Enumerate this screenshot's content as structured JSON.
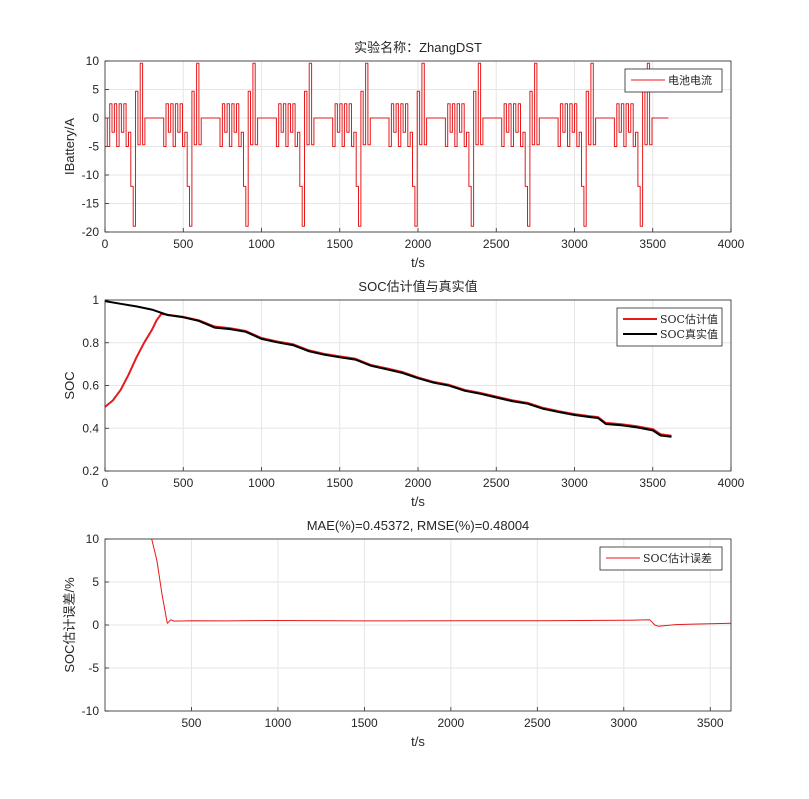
{
  "chart_data": [
    {
      "type": "line",
      "title": "实验名称：ZhangDST",
      "xlabel": "t/s",
      "ylabel": "IBattery/A",
      "xlim": [
        0,
        4000
      ],
      "ylim": [
        -20,
        10
      ],
      "xticks": [
        0,
        500,
        1000,
        1500,
        2000,
        2500,
        3000,
        3500,
        4000
      ],
      "yticks": [
        10,
        5,
        0,
        -5,
        -10,
        -15,
        -20
      ],
      "grid": true,
      "legend": {
        "placement": "top-right",
        "entries": [
          "电池电流"
        ]
      },
      "series": [
        {
          "name": "电池电流",
          "color": "#e41a1c",
          "cycle_period_s": 360,
          "cycles": 10,
          "end_s": 3620,
          "cycle_profile": {
            "t": [
              0,
              15,
              15,
              30,
              30,
              45,
              45,
              60,
              60,
              75,
              75,
              90,
              90,
              105,
              105,
              120,
              120,
              135,
              135,
              150,
              150,
              165,
              165,
              180,
              180,
              195,
              195,
              210,
              210,
              225,
              225,
              240,
              240,
              255,
              255,
              270,
              270,
              285,
              285,
              300,
              300,
              315,
              315,
              330,
              330,
              345,
              345,
              360
            ],
            "i": [
              0,
              0,
              -5,
              -5,
              2.5,
              2.5,
              -2.5,
              -2.5,
              2.5,
              2.5,
              -5,
              -5,
              2.5,
              2.5,
              -2.5,
              -2.5,
              2.5,
              2.5,
              -5,
              -5,
              -2.5,
              -2.5,
              -12,
              -12,
              -19,
              -19,
              4.7,
              4.7,
              -4.7,
              -4.7,
              9.6,
              9.6,
              -4.7,
              -4.7,
              0,
              0,
              0,
              0,
              0,
              0,
              0,
              0,
              0,
              0,
              0,
              0,
              0,
              0
            ]
          }
        }
      ]
    },
    {
      "type": "line",
      "title": "SOC估计值与真实值",
      "xlabel": "t/s",
      "ylabel": "SOC",
      "xlim": [
        0,
        4000
      ],
      "ylim": [
        0.2,
        1
      ],
      "xticks": [
        0,
        500,
        1000,
        1500,
        2000,
        2500,
        3000,
        3500,
        4000
      ],
      "yticks": [
        1,
        0.8,
        0.6,
        0.4,
        0.2
      ],
      "grid": true,
      "legend": {
        "placement": "top-right",
        "entries": [
          "SOC估计值",
          "SOC真实值"
        ]
      },
      "series": [
        {
          "name": "SOC估计值",
          "color": "#e41a1c",
          "x": [
            0,
            50,
            100,
            150,
            200,
            250,
            300,
            330,
            360,
            400,
            500,
            600,
            700,
            800,
            900,
            1000,
            1100,
            1200,
            1300,
            1400,
            1500,
            1600,
            1700,
            1800,
            1900,
            2000,
            2100,
            2200,
            2300,
            2400,
            2500,
            2600,
            2700,
            2800,
            2900,
            3000,
            3100,
            3150,
            3200,
            3300,
            3400,
            3500,
            3550,
            3620
          ],
          "y": [
            0.5,
            0.53,
            0.58,
            0.65,
            0.73,
            0.8,
            0.86,
            0.905,
            0.935,
            0.931,
            0.921,
            0.905,
            0.876,
            0.868,
            0.855,
            0.822,
            0.806,
            0.793,
            0.765,
            0.748,
            0.736,
            0.725,
            0.696,
            0.68,
            0.663,
            0.638,
            0.617,
            0.603,
            0.579,
            0.565,
            0.548,
            0.531,
            0.519,
            0.495,
            0.48,
            0.466,
            0.456,
            0.452,
            0.425,
            0.419,
            0.409,
            0.396,
            0.372,
            0.365
          ]
        },
        {
          "name": "SOC真实值",
          "color": "#000000",
          "x": [
            0,
            100,
            200,
            300,
            360,
            400,
            500,
            600,
            700,
            800,
            900,
            1000,
            1100,
            1200,
            1300,
            1400,
            1500,
            1600,
            1700,
            1800,
            1900,
            2000,
            2100,
            2200,
            2300,
            2400,
            2500,
            2600,
            2700,
            2800,
            2900,
            3000,
            3100,
            3150,
            3200,
            3300,
            3400,
            3500,
            3550,
            3620
          ],
          "y": [
            0.995,
            0.982,
            0.97,
            0.955,
            0.94,
            0.93,
            0.919,
            0.902,
            0.871,
            0.864,
            0.851,
            0.818,
            0.802,
            0.789,
            0.761,
            0.744,
            0.732,
            0.721,
            0.692,
            0.676,
            0.659,
            0.634,
            0.613,
            0.599,
            0.575,
            0.561,
            0.544,
            0.527,
            0.515,
            0.491,
            0.476,
            0.462,
            0.452,
            0.448,
            0.42,
            0.414,
            0.404,
            0.39,
            0.366,
            0.36
          ]
        }
      ]
    },
    {
      "type": "line",
      "title": "MAE(%)=0.45372, RMSE(%)=0.48004",
      "xlabel": "t/s",
      "ylabel": "SOC估计误差/%",
      "xlim": [
        0,
        3620
      ],
      "ylim": [
        -10,
        10
      ],
      "xticks": [
        500,
        1000,
        1500,
        2000,
        2500,
        3000,
        3500
      ],
      "yticks": [
        10,
        5,
        0,
        -5,
        -10
      ],
      "grid": true,
      "legend": {
        "placement": "top-right",
        "entries": [
          "SOC估计误差"
        ]
      },
      "series": [
        {
          "name": "SOC估计误差",
          "color": "#e41a1c",
          "x": [
            270,
            300,
            330,
            360,
            380,
            400,
            500,
            700,
            1000,
            1500,
            2000,
            2500,
            3000,
            3150,
            3180,
            3200,
            3300,
            3400,
            3500,
            3620
          ],
          "y": [
            10,
            7.5,
            3.5,
            0.2,
            0.6,
            0.45,
            0.5,
            0.48,
            0.52,
            0.48,
            0.5,
            0.5,
            0.55,
            0.6,
            0.0,
            -0.15,
            0.05,
            0.1,
            0.15,
            0.2
          ]
        }
      ]
    }
  ]
}
